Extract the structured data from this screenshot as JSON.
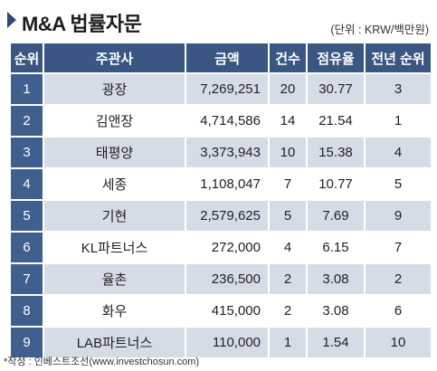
{
  "header": {
    "title": "M&A 법률자문",
    "unit": "(단위 : KRW/백만원)"
  },
  "table": {
    "columns": [
      "순위",
      "주관사",
      "금액",
      "건수",
      "점유율",
      "전년 순위"
    ],
    "rows": [
      {
        "rank": "1",
        "firm": "광장",
        "amount": "7,269,251",
        "count": "20",
        "share": "30.77",
        "prev": "3"
      },
      {
        "rank": "2",
        "firm": "김앤장",
        "amount": "4,714,586",
        "count": "14",
        "share": "21.54",
        "prev": "1"
      },
      {
        "rank": "3",
        "firm": "태평양",
        "amount": "3,373,943",
        "count": "10",
        "share": "15.38",
        "prev": "4"
      },
      {
        "rank": "4",
        "firm": "세종",
        "amount": "1,108,047",
        "count": "7",
        "share": "10.77",
        "prev": "5"
      },
      {
        "rank": "5",
        "firm": "기현",
        "amount": "2,579,625",
        "count": "5",
        "share": "7.69",
        "prev": "9"
      },
      {
        "rank": "6",
        "firm": "KL파트너스",
        "amount": "272,000",
        "count": "4",
        "share": "6.15",
        "prev": "7"
      },
      {
        "rank": "7",
        "firm": "율촌",
        "amount": "236,500",
        "count": "2",
        "share": "3.08",
        "prev": "2"
      },
      {
        "rank": "8",
        "firm": "화우",
        "amount": "415,000",
        "count": "2",
        "share": "3.08",
        "prev": "6"
      },
      {
        "rank": "9",
        "firm": "LAB파트너스",
        "amount": "110,000",
        "count": "1",
        "share": "1.54",
        "prev": "10"
      }
    ]
  },
  "source": "*작성 : 인베스트조선(www.investchosun.com)",
  "colors": {
    "header_bg": "#3a5784",
    "rank_bg": "#3f5f8f",
    "odd_row_bg": "#d6dce7",
    "marker": "#2e4a7d"
  }
}
